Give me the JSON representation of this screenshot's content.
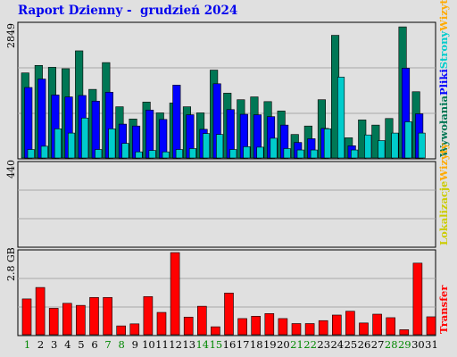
{
  "page": {
    "title": "Raport Dzienny -  grudzień 2024"
  },
  "chart_data": [
    {
      "id": "traffic",
      "type": "bar",
      "ymax_label": "2849",
      "ymax": 2849,
      "side_labels": [
        {
          "text": "Wizyty",
          "color": "#ffaa00"
        },
        {
          "text": "Strony",
          "color": "#00cccc"
        },
        {
          "text": "Pliki",
          "color": "#0000ff"
        },
        {
          "text": "Wywołania",
          "color": "#007755"
        }
      ],
      "series": [
        {
          "name": "Wywołania",
          "color": "#007755",
          "values": [
            1810,
            1970,
            1930,
            1900,
            2280,
            1460,
            2030,
            1090,
            830,
            1190,
            960,
            1170,
            1090,
            960,
            1870,
            1380,
            1240,
            1300,
            1200,
            1000,
            500,
            680,
            1240,
            2610,
            430,
            810,
            700,
            840,
            2790,
            1410,
            0
          ]
        },
        {
          "name": "Pliki",
          "color": "#0000ff",
          "values": [
            1500,
            1680,
            1340,
            1300,
            1330,
            1210,
            1400,
            720,
            680,
            1020,
            820,
            1550,
            920,
            610,
            1580,
            1030,
            930,
            920,
            880,
            700,
            330,
            410,
            630,
            0,
            260,
            0,
            0,
            0,
            1910,
            940,
            0
          ]
        },
        {
          "name": "Strony",
          "color": "#00cccc",
          "values": [
            180,
            250,
            620,
            530,
            850,
            180,
            620,
            310,
            130,
            160,
            130,
            180,
            200,
            520,
            500,
            180,
            240,
            230,
            420,
            200,
            170,
            170,
            620,
            1720,
            170,
            490,
            370,
            530,
            770,
            530,
            0
          ]
        }
      ]
    },
    {
      "id": "visits",
      "type": "bar",
      "ymax_label": "440",
      "ymax": 440,
      "side_labels": [
        {
          "text": "Wizyty",
          "color": "#ffaa00"
        },
        {
          "text": "Lokalizacje",
          "color": "#cccc00"
        }
      ],
      "series": [
        {
          "name": "Lokalizacje",
          "color": "#ffff00",
          "values": [
            0,
            0,
            0,
            0,
            0,
            0,
            0,
            0,
            0,
            0,
            0,
            0,
            0,
            0,
            0,
            0,
            0,
            0,
            0,
            0,
            0,
            0,
            0,
            0,
            0,
            0,
            0,
            0,
            0,
            0,
            0
          ]
        },
        {
          "name": "Wizyty",
          "color": "#ff8800",
          "values": [
            0,
            0,
            0,
            0,
            0,
            0,
            0,
            0,
            0,
            0,
            0,
            0,
            0,
            0,
            0,
            0,
            0,
            0,
            0,
            0,
            0,
            0,
            0,
            0,
            0,
            0,
            0,
            0,
            0,
            0,
            0
          ]
        }
      ]
    },
    {
      "id": "transfer",
      "type": "bar",
      "ymax_label": "2.8 GB",
      "ymax": 2.8,
      "side_labels": [
        {
          "text": "Transfer",
          "color": "#ff0000"
        }
      ],
      "series": [
        {
          "name": "Transfer",
          "color": "#ff0000",
          "values": [
            1.22,
            1.61,
            0.9,
            1.07,
            1.0,
            1.27,
            1.27,
            0.3,
            0.37,
            1.3,
            0.76,
            2.8,
            0.6,
            0.97,
            0.27,
            1.42,
            0.55,
            0.63,
            0.72,
            0.55,
            0.38,
            0.38,
            0.48,
            0.67,
            0.8,
            0.4,
            0.7,
            0.58,
            0.17,
            2.44,
            0.61
          ]
        }
      ]
    }
  ],
  "days": [
    "1",
    "2",
    "3",
    "4",
    "5",
    "6",
    "7",
    "8",
    "9",
    "10",
    "11",
    "12",
    "13",
    "14",
    "15",
    "16",
    "17",
    "18",
    "19",
    "20",
    "21",
    "22",
    "23",
    "24",
    "25",
    "26",
    "27",
    "28",
    "29",
    "30",
    "31"
  ],
  "weekend_color": "#008800",
  "weekend_days": [
    1,
    7,
    8,
    14,
    15,
    21,
    22,
    28,
    29
  ]
}
